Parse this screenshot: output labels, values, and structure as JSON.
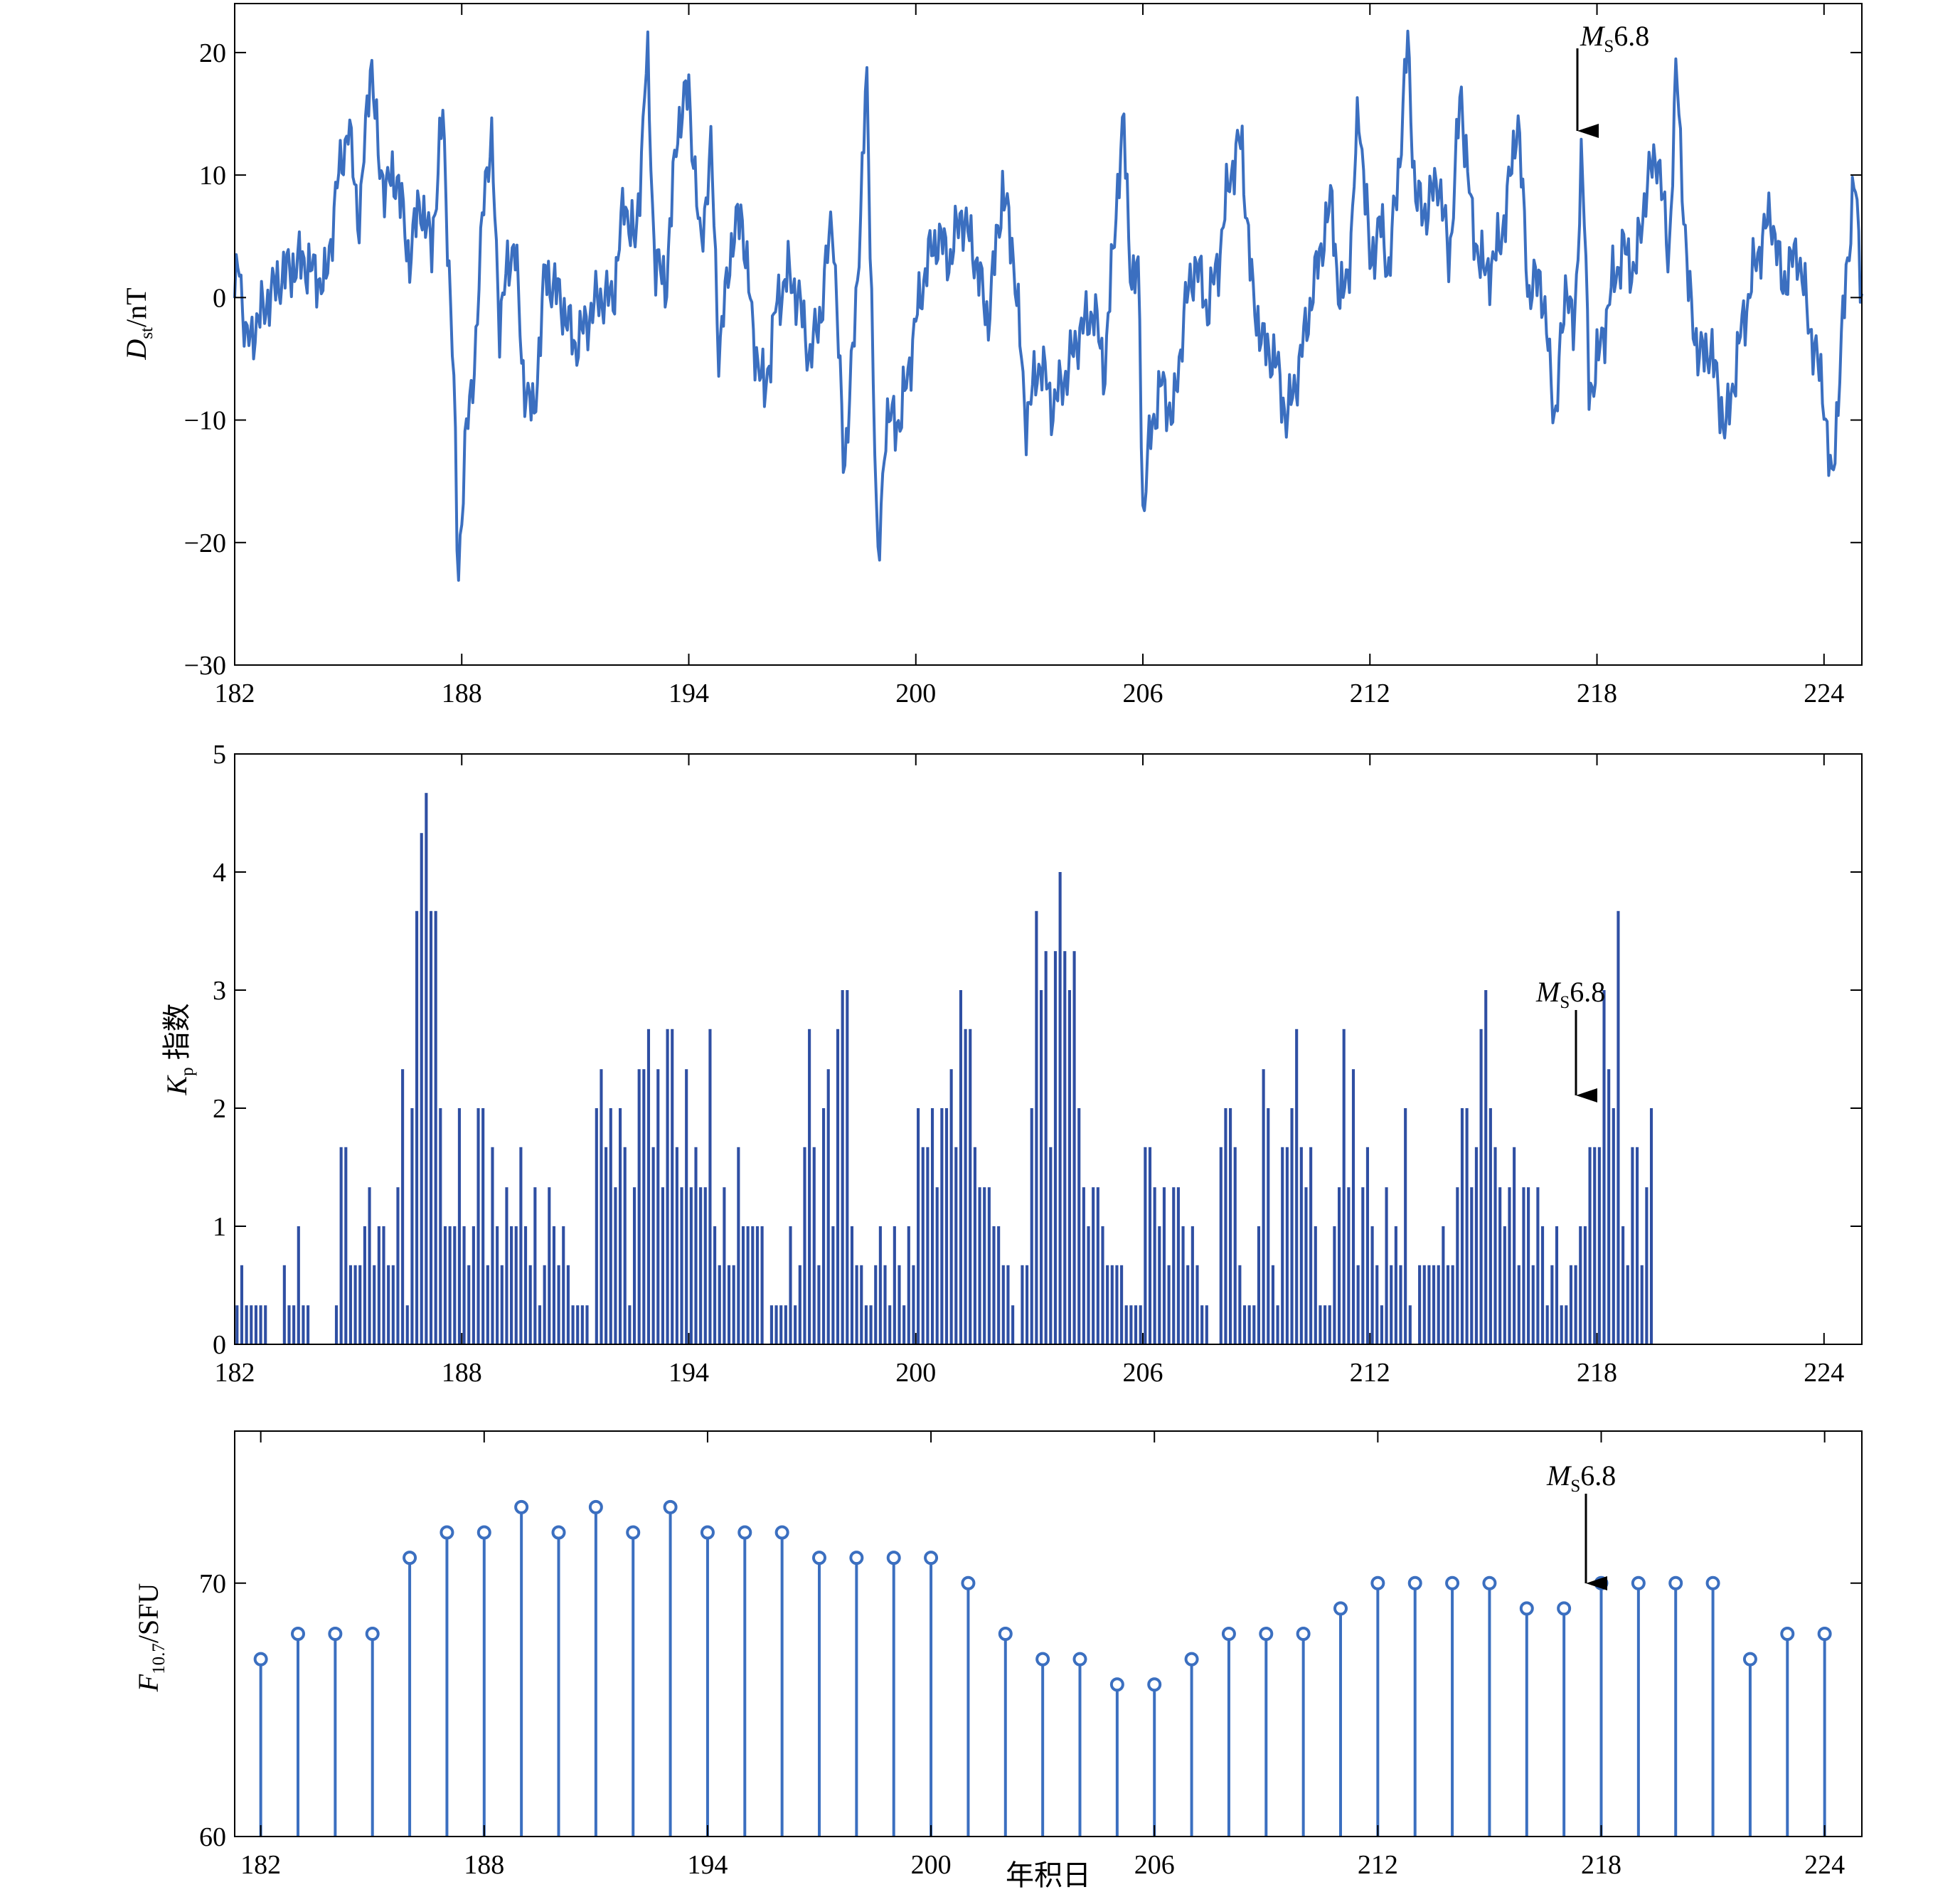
{
  "charts": {
    "dst": {
      "ylabel_main": "D",
      "ylabel_sub": "st",
      "ylabel_unit": "/nT",
      "annotation": {
        "main": "M",
        "sub": "S",
        "value": "6.8"
      }
    },
    "kp": {
      "ylabel_main": "K",
      "ylabel_sub": "p",
      "ylabel_unit": " 指数",
      "annotation": {
        "main": "M",
        "sub": "S",
        "value": "6.8"
      }
    },
    "f107": {
      "ylabel_main": "F",
      "ylabel_sub": "10.7",
      "ylabel_unit": "/SFU",
      "xlabel": "年积日",
      "annotation": {
        "main": "M",
        "sub": "S",
        "value": "6.8"
      }
    }
  },
  "chart_data": [
    {
      "type": "line",
      "series_color": "#3b6fc0",
      "xlim": [
        182,
        225
      ],
      "ylim": [
        -30,
        24
      ],
      "xticks": [
        182,
        188,
        194,
        200,
        206,
        212,
        218,
        224
      ],
      "yticks": [
        -30,
        -20,
        -10,
        0,
        10,
        20
      ],
      "ytick_labels": [
        "−30",
        "−20",
        "−10",
        "0",
        "10",
        "20"
      ],
      "sampling_hours": 1,
      "annotation_x": 217.6,
      "annotation_y": 13,
      "keypoints": [
        [
          182,
          -1
        ],
        [
          182.1,
          4
        ],
        [
          182.3,
          -4
        ],
        [
          182.6,
          -2
        ],
        [
          182.9,
          0
        ],
        [
          183.3,
          2
        ],
        [
          183.8,
          3
        ],
        [
          184.1,
          2
        ],
        [
          184.4,
          1
        ],
        [
          184.7,
          9
        ],
        [
          185,
          14
        ],
        [
          185.3,
          6
        ],
        [
          185.6,
          20
        ],
        [
          185.8,
          11
        ],
        [
          186,
          9
        ],
        [
          186.3,
          10
        ],
        [
          186.6,
          3
        ],
        [
          186.9,
          8
        ],
        [
          187.2,
          4
        ],
        [
          187.5,
          15
        ],
        [
          187.8,
          -8
        ],
        [
          187.9,
          -23
        ],
        [
          188.1,
          -12
        ],
        [
          188.4,
          -3
        ],
        [
          188.6,
          10
        ],
        [
          188.8,
          12
        ],
        [
          189.0,
          -2
        ],
        [
          189.2,
          2
        ],
        [
          189.4,
          5
        ],
        [
          189.6,
          -6
        ],
        [
          189.9,
          -10
        ],
        [
          190.2,
          2
        ],
        [
          190.6,
          0
        ],
        [
          191,
          -4
        ],
        [
          191.3,
          -2
        ],
        [
          191.6,
          0
        ],
        [
          192,
          0
        ],
        [
          192.3,
          8
        ],
        [
          192.6,
          4
        ],
        [
          192.9,
          20
        ],
        [
          193.1,
          3
        ],
        [
          193.4,
          1
        ],
        [
          193.7,
          14
        ],
        [
          194,
          17
        ],
        [
          194.3,
          4
        ],
        [
          194.6,
          12
        ],
        [
          194.8,
          -5
        ],
        [
          195.1,
          4
        ],
        [
          195.4,
          7
        ],
        [
          195.7,
          -3
        ],
        [
          196,
          -8
        ],
        [
          196.3,
          -1
        ],
        [
          196.6,
          2
        ],
        [
          196.9,
          0
        ],
        [
          197.2,
          -5
        ],
        [
          197.5,
          -1
        ],
        [
          197.8,
          7
        ],
        [
          198.1,
          -14
        ],
        [
          198.4,
          -2
        ],
        [
          198.7,
          18
        ],
        [
          199,
          -23
        ],
        [
          199.2,
          -10
        ],
        [
          199.6,
          -10
        ],
        [
          200,
          -2
        ],
        [
          200.3,
          3
        ],
        [
          200.6,
          5
        ],
        [
          200.9,
          3
        ],
        [
          201.2,
          7
        ],
        [
          201.6,
          3
        ],
        [
          201.9,
          -2
        ],
        [
          202.3,
          9
        ],
        [
          202.6,
          3
        ],
        [
          202.9,
          -10
        ],
        [
          203.3,
          -5
        ],
        [
          203.6,
          -9
        ],
        [
          204,
          -6
        ],
        [
          204.3,
          -3
        ],
        [
          204.7,
          -1
        ],
        [
          205,
          -6
        ],
        [
          205.3,
          8
        ],
        [
          205.5,
          14
        ],
        [
          205.7,
          1
        ],
        [
          205.9,
          2
        ],
        [
          206.0,
          -18
        ],
        [
          206.2,
          -11
        ],
        [
          206.5,
          -7
        ],
        [
          206.8,
          -10
        ],
        [
          207.1,
          -1
        ],
        [
          207.4,
          3
        ],
        [
          207.7,
          -1
        ],
        [
          208,
          3
        ],
        [
          208.3,
          10
        ],
        [
          208.6,
          13
        ],
        [
          208.9,
          0
        ],
        [
          209.2,
          -4
        ],
        [
          209.5,
          -5
        ],
        [
          209.8,
          -10
        ],
        [
          210.1,
          -6
        ],
        [
          210.4,
          -1
        ],
        [
          210.7,
          4
        ],
        [
          211,
          8
        ],
        [
          211.2,
          -1
        ],
        [
          211.5,
          4
        ],
        [
          211.7,
          16
        ],
        [
          212,
          3
        ],
        [
          212.3,
          6
        ],
        [
          212.5,
          2
        ],
        [
          212.8,
          12
        ],
        [
          213.0,
          21
        ],
        [
          213.2,
          8
        ],
        [
          213.5,
          7
        ],
        [
          213.8,
          10
        ],
        [
          214.1,
          3
        ],
        [
          214.4,
          17
        ],
        [
          214.7,
          6
        ],
        [
          215,
          2
        ],
        [
          215.3,
          3
        ],
        [
          215.6,
          7
        ],
        [
          215.9,
          15
        ],
        [
          216.2,
          0
        ],
        [
          216.5,
          2
        ],
        [
          216.9,
          -10
        ],
        [
          217.2,
          2
        ],
        [
          217.4,
          -4
        ],
        [
          217.6,
          13
        ],
        [
          217.8,
          -8
        ],
        [
          218.1,
          -4
        ],
        [
          218.4,
          1
        ],
        [
          218.7,
          4
        ],
        [
          219.0,
          2
        ],
        [
          219.3,
          9
        ],
        [
          219.6,
          12
        ],
        [
          219.9,
          3
        ],
        [
          220.1,
          19
        ],
        [
          220.4,
          1
        ],
        [
          220.7,
          -5
        ],
        [
          221.0,
          -4
        ],
        [
          221.4,
          -11
        ],
        [
          221.8,
          -3
        ],
        [
          222.2,
          3
        ],
        [
          222.6,
          7
        ],
        [
          222.9,
          1
        ],
        [
          223.3,
          4
        ],
        [
          223.6,
          -2
        ],
        [
          224,
          -8
        ],
        [
          224.2,
          -16
        ],
        [
          224.5,
          -2
        ],
        [
          224.8,
          10
        ],
        [
          225,
          0
        ]
      ]
    },
    {
      "type": "bar",
      "series_color": "#2f4fa3",
      "xlim": [
        182,
        225
      ],
      "ylim": [
        0,
        5
      ],
      "xticks": [
        182,
        188,
        194,
        200,
        206,
        212,
        218,
        224
      ],
      "yticks": [
        0,
        1,
        2,
        3,
        4,
        5
      ],
      "interval_hours": 3,
      "annotation_x": 217.6,
      "annotation_y": 2,
      "values": [
        0.33,
        0.67,
        0.33,
        0.33,
        0.33,
        0.33,
        0.33,
        0,
        0,
        0,
        0.67,
        0.33,
        0.33,
        1,
        0.33,
        0.33,
        0,
        0,
        0,
        0,
        0,
        0.33,
        1.67,
        1.67,
        0.67,
        0.67,
        0.67,
        1,
        1.33,
        0.67,
        1,
        1,
        0.67,
        0.67,
        1.33,
        2.33,
        0.33,
        2,
        3.67,
        4.33,
        4.67,
        3.67,
        3.67,
        2,
        1,
        1,
        1,
        2,
        1,
        0.67,
        1,
        2,
        2,
        0.67,
        1.67,
        1,
        0.67,
        1.33,
        1,
        1,
        1.67,
        1,
        0.67,
        1.33,
        0.33,
        0.67,
        1.33,
        1,
        0.67,
        1,
        0.67,
        0.33,
        0.33,
        0.33,
        0.33,
        0,
        2,
        2.33,
        1.67,
        2,
        1.33,
        2,
        1.67,
        0.33,
        1.33,
        2.33,
        2.33,
        2.67,
        1.67,
        2.33,
        1.33,
        2.67,
        2.67,
        1.67,
        1.33,
        2.33,
        1.33,
        1.67,
        1.33,
        1.33,
        2.67,
        1,
        0.67,
        1.33,
        0.67,
        0.67,
        1.67,
        1,
        1,
        1,
        1,
        1,
        0,
        0.33,
        0.33,
        0.33,
        0.33,
        1,
        0.33,
        0.67,
        1.67,
        2.67,
        1.67,
        0.67,
        2,
        2.33,
        1,
        2.67,
        3,
        3,
        1,
        0.67,
        0.67,
        0.33,
        0.33,
        0.67,
        1,
        0.67,
        0.33,
        1,
        0.67,
        0.33,
        1,
        0.67,
        2,
        1.67,
        1.67,
        2,
        1.33,
        2,
        2,
        2.33,
        1.67,
        3,
        2.67,
        2.67,
        1.67,
        1.33,
        1.33,
        1.33,
        1,
        1,
        0.67,
        0.67,
        0.33,
        0,
        0.67,
        0.67,
        2,
        3.67,
        3,
        3.33,
        1.67,
        3.33,
        4,
        3.33,
        3,
        3.33,
        2,
        1.33,
        1,
        1.33,
        1.33,
        1,
        0.67,
        0.67,
        0.67,
        0.67,
        0.33,
        0.33,
        0.33,
        0.33,
        1.67,
        1.67,
        1.33,
        1,
        1.33,
        0.67,
        1.33,
        1.33,
        1,
        0.67,
        1,
        0.67,
        0.33,
        0.33,
        0,
        0,
        1.67,
        2,
        2,
        1.67,
        0.67,
        0.33,
        0.33,
        0.33,
        1,
        2.33,
        2,
        0.67,
        0.33,
        1.67,
        1.67,
        2,
        2.67,
        1.67,
        1.33,
        1.67,
        1,
        0.33,
        0.33,
        0.33,
        1,
        1.33,
        2.67,
        1.33,
        2.33,
        0.67,
        1.33,
        1.67,
        1,
        0.67,
        0.33,
        1.33,
        0.67,
        1,
        0.67,
        2,
        0.33,
        0,
        0.67,
        0.67,
        0.67,
        0.67,
        0.67,
        1,
        0.67,
        0.67,
        1.33,
        2,
        2,
        1.33,
        1.67,
        2.67,
        3,
        2,
        1.67,
        1.33,
        1,
        1.33,
        1.67,
        0.67,
        1.33,
        1.33,
        0.67,
        1.33,
        1,
        0.33,
        0.67,
        1,
        0.33,
        0.33,
        0.67,
        0.67,
        1,
        1,
        1.67,
        1.67,
        1.67,
        3,
        2.33,
        2,
        3.67,
        1,
        0.67,
        1.67,
        1.67,
        0.67,
        1.33,
        2
      ]
    },
    {
      "type": "stem",
      "series_color": "#3b6fc0",
      "xlim": [
        181.3,
        225
      ],
      "ylim": [
        60,
        76
      ],
      "xticks": [
        182,
        188,
        194,
        200,
        206,
        212,
        218,
        224
      ],
      "yticks": [
        60,
        70
      ],
      "xlabel": "年积日",
      "annotation_x": 217.5,
      "annotation_y": 70,
      "x": [
        182,
        183,
        184,
        185,
        186,
        187,
        188,
        189,
        190,
        191,
        192,
        193,
        194,
        195,
        196,
        197,
        198,
        199,
        200,
        201,
        202,
        203,
        204,
        205,
        206,
        207,
        208,
        209,
        210,
        211,
        212,
        213,
        214,
        215,
        216,
        217,
        218,
        219,
        220,
        221,
        222,
        223,
        224
      ],
      "values": [
        67,
        68,
        68,
        68,
        71,
        72,
        72,
        73,
        72,
        73,
        72,
        73,
        72,
        72,
        72,
        71,
        71,
        71,
        71,
        70,
        68,
        67,
        67,
        66,
        66,
        67,
        68,
        68,
        68,
        69,
        70,
        70,
        70,
        70,
        69,
        69,
        70,
        70,
        70,
        70,
        67,
        68,
        68
      ]
    }
  ]
}
